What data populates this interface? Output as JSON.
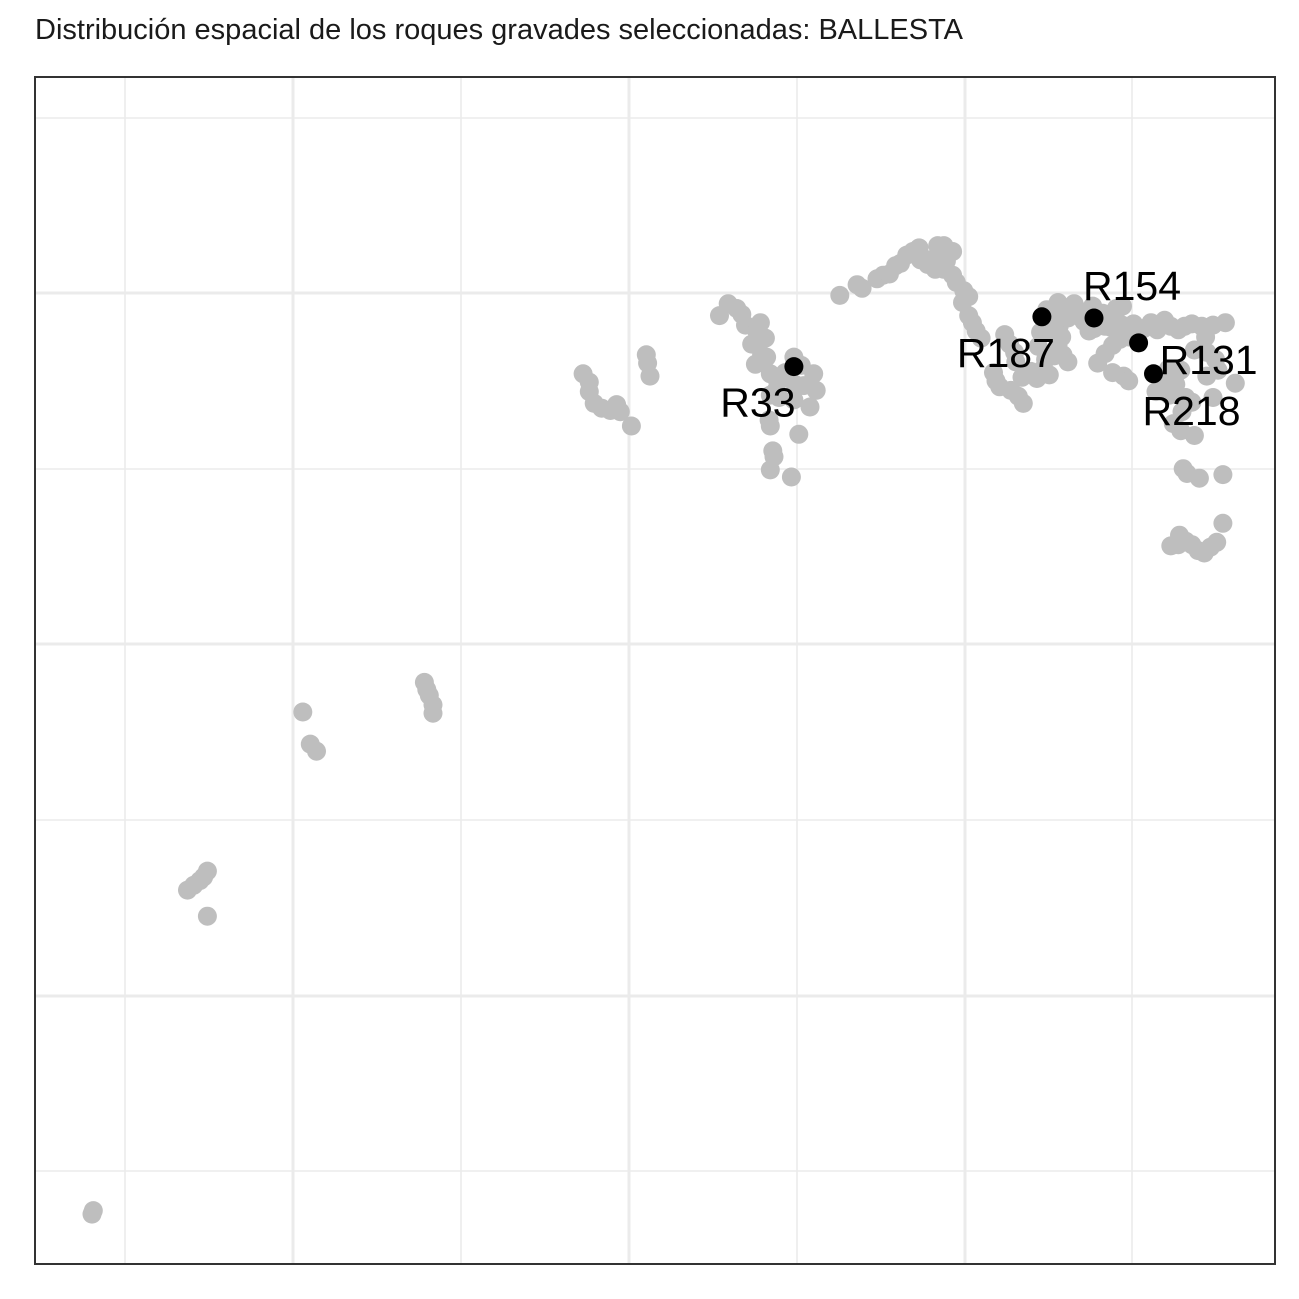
{
  "title": "Distribución espacial de los roques gravades seleccionadas:  BALLESTA",
  "colors": {
    "background_point": "#bebebe",
    "highlight_point": "#000000",
    "panel_border": "#333333",
    "grid": "#ebebeb"
  },
  "chart_data": {
    "type": "scatter",
    "title": "Distribución espacial de los roques gravades seleccionadas:  BALLESTA",
    "xlabel": "",
    "ylabel": "",
    "xlim": [
      0,
      100
    ],
    "ylim": [
      0,
      100
    ],
    "grid": true,
    "axes_tick_labels": false,
    "series": [
      {
        "color": "#bebebe",
        "points": [
          [
            4.6,
            4.2
          ],
          [
            4.7,
            4.5
          ],
          [
            12.3,
            31.5
          ],
          [
            12.8,
            31.9
          ],
          [
            13.3,
            32.3
          ],
          [
            13.6,
            32.6
          ],
          [
            13.9,
            33.1
          ],
          [
            13.9,
            29.3
          ],
          [
            21.6,
            46.5
          ],
          [
            22.2,
            43.8
          ],
          [
            22.7,
            43.2
          ],
          [
            31.4,
            49.0
          ],
          [
            31.6,
            48.4
          ],
          [
            31.8,
            47.9
          ],
          [
            32.1,
            47.1
          ],
          [
            32.1,
            46.4
          ],
          [
            44.2,
            75.0
          ],
          [
            44.7,
            74.3
          ],
          [
            44.7,
            73.5
          ],
          [
            45.1,
            72.5
          ],
          [
            45.7,
            72.1
          ],
          [
            46.4,
            71.9
          ],
          [
            46.9,
            72.4
          ],
          [
            47.2,
            71.8
          ],
          [
            48.1,
            70.6
          ],
          [
            49.3,
            76.6
          ],
          [
            49.4,
            75.9
          ],
          [
            49.6,
            74.8
          ],
          [
            55.2,
            79.9
          ],
          [
            55.9,
            80.9
          ],
          [
            56.6,
            80.5
          ],
          [
            57.0,
            80.0
          ],
          [
            57.3,
            79.1
          ],
          [
            57.8,
            77.5
          ],
          [
            58.2,
            78.6
          ],
          [
            58.5,
            79.3
          ],
          [
            58.9,
            78.0
          ],
          [
            58.6,
            76.6
          ],
          [
            58.1,
            75.8
          ],
          [
            59.0,
            76.4
          ],
          [
            59.3,
            75.0
          ],
          [
            59.9,
            74.3
          ],
          [
            59.7,
            73.5
          ],
          [
            59.3,
            73.2
          ],
          [
            60.0,
            73.0
          ],
          [
            61.2,
            72.8
          ],
          [
            61.3,
            74.1
          ],
          [
            61.8,
            75.7
          ],
          [
            61.2,
            76.4
          ],
          [
            60.5,
            75.1
          ],
          [
            62.0,
            74.0
          ],
          [
            62.8,
            75.0
          ],
          [
            63.0,
            73.6
          ],
          [
            62.5,
            72.2
          ],
          [
            59.2,
            71.1
          ],
          [
            59.3,
            70.6
          ],
          [
            59.5,
            68.5
          ],
          [
            59.6,
            68.0
          ],
          [
            61.6,
            69.9
          ],
          [
            59.3,
            66.9
          ],
          [
            61.0,
            66.3
          ],
          [
            64.9,
            81.6
          ],
          [
            66.3,
            82.5
          ],
          [
            66.7,
            82.2
          ],
          [
            67.9,
            83.0
          ],
          [
            68.4,
            83.3
          ],
          [
            68.9,
            83.4
          ],
          [
            69.4,
            84.1
          ],
          [
            69.8,
            84.3
          ],
          [
            70.3,
            85.0
          ],
          [
            70.8,
            85.3
          ],
          [
            71.3,
            85.6
          ],
          [
            72.8,
            85.8
          ],
          [
            73.3,
            85.8
          ],
          [
            74.0,
            85.3
          ],
          [
            71.8,
            84.6
          ],
          [
            73.0,
            84.3
          ],
          [
            73.5,
            84.5
          ],
          [
            72.6,
            83.8
          ],
          [
            73.3,
            83.8
          ],
          [
            74.0,
            83.3
          ],
          [
            72.2,
            84.6
          ],
          [
            73.0,
            85.6
          ],
          [
            71.4,
            84.6
          ],
          [
            72.0,
            84.2
          ],
          [
            72.7,
            84.8
          ],
          [
            73.4,
            84.5
          ],
          [
            74.3,
            82.7
          ],
          [
            74.9,
            82.0
          ],
          [
            75.3,
            81.5
          ],
          [
            74.8,
            81.0
          ],
          [
            75.3,
            79.9
          ],
          [
            75.6,
            79.3
          ],
          [
            75.9,
            78.6
          ],
          [
            76.3,
            78.0
          ],
          [
            78.2,
            78.3
          ],
          [
            78.6,
            77.5
          ],
          [
            79.0,
            76.8
          ],
          [
            79.1,
            76.0
          ],
          [
            77.3,
            75.1
          ],
          [
            77.5,
            74.4
          ],
          [
            77.8,
            73.9
          ],
          [
            78.7,
            73.6
          ],
          [
            79.3,
            73.1
          ],
          [
            79.7,
            72.5
          ],
          [
            79.6,
            74.7
          ],
          [
            80.3,
            75.2
          ],
          [
            80.8,
            74.6
          ],
          [
            81.3,
            75.4
          ],
          [
            81.8,
            74.9
          ],
          [
            82.2,
            76.5
          ],
          [
            82.5,
            77.4
          ],
          [
            82.8,
            78.1
          ],
          [
            82.9,
            76.6
          ],
          [
            83.3,
            76.0
          ],
          [
            80.9,
            77.3
          ],
          [
            81.5,
            76.2
          ],
          [
            81.1,
            78.5
          ],
          [
            81.5,
            79.0
          ],
          [
            81.8,
            79.9
          ],
          [
            82.2,
            80.5
          ],
          [
            81.7,
            78.5
          ],
          [
            82.6,
            79.0
          ],
          [
            83.0,
            79.8
          ],
          [
            81.6,
            80.4
          ],
          [
            82.5,
            81.0
          ],
          [
            82.9,
            80.5
          ],
          [
            83.3,
            79.7
          ],
          [
            83.6,
            80.0
          ],
          [
            84.2,
            80.3
          ],
          [
            84.6,
            79.4
          ],
          [
            85.0,
            79.7
          ],
          [
            85.4,
            78.8
          ],
          [
            85.9,
            79.6
          ],
          [
            86.3,
            79.0
          ],
          [
            86.8,
            78.9
          ],
          [
            87.5,
            79.2
          ],
          [
            88.0,
            79.0
          ],
          [
            88.6,
            79.2
          ],
          [
            89.4,
            78.8
          ],
          [
            90.0,
            79.3
          ],
          [
            90.5,
            78.7
          ],
          [
            91.1,
            79.5
          ],
          [
            91.6,
            79.0
          ],
          [
            92.2,
            78.7
          ],
          [
            92.7,
            79.0
          ],
          [
            93.3,
            79.2
          ],
          [
            94.1,
            79.0
          ],
          [
            95.0,
            79.1
          ],
          [
            96.0,
            79.3
          ],
          [
            94.4,
            78.1
          ],
          [
            93.5,
            77.0
          ],
          [
            94.5,
            76.8
          ],
          [
            95.2,
            76.2
          ],
          [
            95.4,
            75.3
          ],
          [
            94.5,
            74.8
          ],
          [
            92.4,
            75.3
          ],
          [
            92.0,
            74.1
          ],
          [
            91.4,
            75.4
          ],
          [
            90.9,
            74.3
          ],
          [
            90.4,
            73.5
          ],
          [
            91.5,
            73.2
          ],
          [
            92.8,
            73.0
          ],
          [
            93.3,
            72.6
          ],
          [
            92.5,
            71.8
          ],
          [
            91.8,
            70.8
          ],
          [
            92.4,
            70.2
          ],
          [
            93.5,
            69.8
          ],
          [
            95.0,
            73.0
          ],
          [
            96.8,
            74.2
          ],
          [
            92.6,
            67.0
          ],
          [
            92.9,
            66.6
          ],
          [
            93.9,
            66.2
          ],
          [
            95.8,
            66.5
          ],
          [
            91.6,
            60.5
          ],
          [
            92.2,
            60.6
          ],
          [
            92.8,
            60.9
          ],
          [
            93.3,
            60.6
          ],
          [
            93.8,
            60.1
          ],
          [
            94.3,
            59.9
          ],
          [
            94.8,
            60.4
          ],
          [
            95.3,
            60.8
          ],
          [
            95.8,
            62.4
          ],
          [
            92.3,
            61.4
          ],
          [
            87.8,
            74.8
          ],
          [
            88.2,
            74.4
          ],
          [
            86.9,
            75.1
          ],
          [
            85.7,
            75.9
          ],
          [
            86.3,
            76.7
          ],
          [
            86.9,
            77.4
          ],
          [
            87.5,
            77.9
          ],
          [
            88.2,
            78.1
          ],
          [
            85.3,
            80.7
          ],
          [
            86.1,
            80.1
          ],
          [
            86.6,
            79.9
          ],
          [
            87.2,
            80.5
          ],
          [
            87.7,
            80.7
          ],
          [
            83.8,
            80.9
          ],
          [
            84.4,
            79.7
          ],
          [
            85.0,
            78.6
          ]
        ]
      },
      {
        "color": "#000000",
        "points": [
          {
            "label": "R33",
            "x": 61.2,
            "y": 75.6
          },
          {
            "label": "R187",
            "x": 81.2,
            "y": 79.8
          },
          {
            "label": "R154",
            "x": 85.4,
            "y": 79.7
          },
          {
            "label": "R131",
            "x": 89.0,
            "y": 77.6
          },
          {
            "label": "R218",
            "x": 90.2,
            "y": 75.0
          }
        ]
      }
    ]
  }
}
